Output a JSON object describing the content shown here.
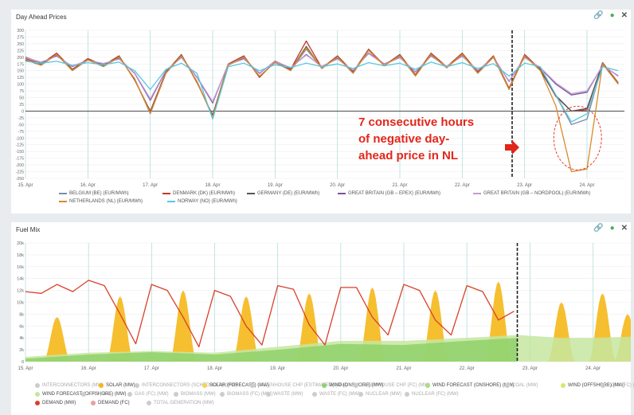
{
  "panels": {
    "prices": {
      "title": "Day Ahead Prices"
    },
    "fuel": {
      "title": "Fuel Mix"
    }
  },
  "icons": {
    "link": "link-icon",
    "database": "database-icon",
    "close": "close-icon"
  },
  "annotation": {
    "lines": [
      "7 consecutive hours",
      "of negative day-",
      "ahead price in NL"
    ],
    "color": "#e3261b"
  },
  "chart_data": [
    {
      "type": "line",
      "title": "Day Ahead Prices",
      "x_ticks": [
        "15. Apr",
        "16. Apr",
        "17. Apr",
        "18. Apr",
        "19. Apr",
        "20. Apr",
        "21. Apr",
        "22. Apr",
        "23. Apr",
        "24. Apr"
      ],
      "y_ticks": [
        300,
        275,
        250,
        225,
        200,
        175,
        150,
        125,
        100,
        75,
        50,
        25,
        0,
        -25,
        -50,
        -75,
        -100,
        -125,
        -150,
        -175,
        -200,
        -225,
        -250
      ],
      "ylim": [
        -250,
        300
      ],
      "x_range_days": [
        0,
        9.6
      ],
      "now_marker_day": 7.8,
      "grid": true,
      "legend_placement": "bottom",
      "series": [
        {
          "name": "BELGIUM (BE) (EUR/MWh)",
          "color": "#7a8fa6",
          "x": [
            0,
            0.25,
            0.5,
            0.75,
            1,
            1.25,
            1.5,
            1.75,
            2,
            2.25,
            2.5,
            2.75,
            3,
            3.25,
            3.5,
            3.75,
            4,
            4.25,
            4.5,
            4.75,
            5,
            5.25,
            5.5,
            5.75,
            6,
            6.25,
            6.5,
            6.75,
            7,
            7.25,
            7.5,
            7.75,
            8,
            8.25,
            8.5,
            8.75,
            9,
            9.25,
            9.5
          ],
          "values": [
            190,
            170,
            210,
            150,
            190,
            165,
            200,
            120,
            -10,
            140,
            205,
            110,
            -20,
            170,
            200,
            130,
            180,
            150,
            230,
            160,
            200,
            140,
            225,
            170,
            205,
            130,
            210,
            160,
            210,
            140,
            200,
            80,
            205,
            150,
            60,
            -50,
            -30,
            175,
            100
          ]
        },
        {
          "name": "DENMARK (DK) (EUR/MWh)",
          "color": "#c0392b",
          "x": [
            0,
            0.25,
            0.5,
            0.75,
            1,
            1.25,
            1.5,
            1.75,
            2,
            2.25,
            2.5,
            2.75,
            3,
            3.25,
            3.5,
            3.75,
            4,
            4.25,
            4.5,
            4.75,
            5,
            5.25,
            5.5,
            5.75,
            6,
            6.25,
            6.5,
            6.75,
            7,
            7.25,
            7.5,
            7.75,
            8,
            8.25,
            8.5,
            8.75,
            9,
            9.25,
            9.5
          ],
          "values": [
            195,
            175,
            215,
            155,
            195,
            170,
            205,
            115,
            0,
            145,
            210,
            105,
            -15,
            175,
            205,
            125,
            185,
            155,
            260,
            160,
            205,
            145,
            230,
            170,
            210,
            135,
            215,
            165,
            215,
            145,
            205,
            85,
            210,
            155,
            55,
            0,
            5,
            180,
            105
          ]
        },
        {
          "name": "GERMANY (DE) (EUR/MWh)",
          "color": "#555555",
          "x": [
            0,
            0.25,
            0.5,
            0.75,
            1,
            1.25,
            1.5,
            1.75,
            2,
            2.25,
            2.5,
            2.75,
            3,
            3.25,
            3.5,
            3.75,
            4,
            4.25,
            4.5,
            4.75,
            5,
            5.25,
            5.5,
            5.75,
            6,
            6.25,
            6.5,
            6.75,
            7,
            7.25,
            7.5,
            7.75,
            8,
            8.25,
            8.5,
            8.75,
            9,
            9.25,
            9.5
          ],
          "values": [
            190,
            172,
            212,
            152,
            192,
            168,
            202,
            118,
            -5,
            142,
            208,
            108,
            -18,
            172,
            202,
            128,
            182,
            152,
            240,
            158,
            202,
            142,
            228,
            168,
            208,
            132,
            212,
            162,
            212,
            142,
            202,
            82,
            207,
            152,
            58,
            0,
            10,
            177,
            102
          ]
        },
        {
          "name": "GREAT BRITAIN (GB – EPEX) (EUR/MWh)",
          "color": "#7b4fa0",
          "x": [
            0,
            0.25,
            0.5,
            0.75,
            1,
            1.25,
            1.5,
            1.75,
            2,
            2.25,
            2.5,
            2.75,
            3,
            3.25,
            3.5,
            3.75,
            4,
            4.25,
            4.5,
            4.75,
            5,
            5.25,
            5.5,
            5.75,
            6,
            6.25,
            6.5,
            6.75,
            7,
            7.25,
            7.5,
            7.75,
            8,
            8.25,
            8.5,
            8.75,
            9,
            9.25,
            9.5
          ],
          "values": [
            200,
            180,
            205,
            165,
            190,
            175,
            195,
            140,
            40,
            150,
            200,
            125,
            30,
            175,
            195,
            140,
            185,
            160,
            210,
            165,
            195,
            150,
            215,
            175,
            200,
            145,
            205,
            165,
            205,
            150,
            200,
            110,
            200,
            160,
            100,
            60,
            70,
            170,
            130
          ]
        },
        {
          "name": "GREAT BRITAIN (GB – NORDPOOL) (EUR/MWh)",
          "color": "#c39bd3",
          "x": [
            0,
            0.25,
            0.5,
            0.75,
            1,
            1.25,
            1.5,
            1.75,
            2,
            2.25,
            2.5,
            2.75,
            3,
            3.25,
            3.5,
            3.75,
            4,
            4.25,
            4.5,
            4.75,
            5,
            5.25,
            5.5,
            5.75,
            6,
            6.25,
            6.5,
            6.75,
            7,
            7.25,
            7.5,
            7.75,
            8,
            8.25,
            8.5,
            8.75,
            9,
            9.25,
            9.5
          ],
          "values": [
            198,
            182,
            203,
            167,
            188,
            177,
            193,
            142,
            45,
            152,
            198,
            127,
            35,
            173,
            193,
            142,
            183,
            162,
            208,
            167,
            193,
            152,
            213,
            173,
            198,
            147,
            203,
            167,
            203,
            152,
            198,
            112,
            198,
            162,
            105,
            65,
            75,
            168,
            132
          ]
        },
        {
          "name": "NETHERLANDS (NL) (EUR/MWh)",
          "color": "#d98a2b",
          "x": [
            0,
            0.25,
            0.5,
            0.75,
            1,
            1.25,
            1.5,
            1.75,
            2,
            2.25,
            2.5,
            2.75,
            3,
            3.25,
            3.5,
            3.75,
            4,
            4.25,
            4.5,
            4.75,
            5,
            5.25,
            5.5,
            5.75,
            6,
            6.25,
            6.5,
            6.75,
            7,
            7.25,
            7.5,
            7.75,
            8,
            8.25,
            8.5,
            8.75,
            9,
            9.25,
            9.5
          ],
          "values": [
            192,
            171,
            211,
            151,
            191,
            166,
            201,
            119,
            -8,
            141,
            206,
            109,
            -22,
            171,
            201,
            129,
            181,
            151,
            235,
            159,
            201,
            141,
            226,
            169,
            206,
            131,
            211,
            161,
            211,
            141,
            201,
            81,
            206,
            151,
            20,
            -225,
            -215,
            176,
            101
          ]
        },
        {
          "name": "NORWAY (NO) (EUR/MWh)",
          "color": "#56c8e0",
          "x": [
            0,
            0.25,
            0.5,
            0.75,
            1,
            1.25,
            1.5,
            1.75,
            2,
            2.25,
            2.5,
            2.75,
            3,
            3.25,
            3.5,
            3.75,
            4,
            4.25,
            4.5,
            4.75,
            5,
            5.25,
            5.5,
            5.75,
            6,
            6.25,
            6.5,
            6.75,
            7,
            7.25,
            7.5,
            7.75,
            8,
            8.25,
            8.5,
            8.75,
            9,
            9.25,
            9.5
          ],
          "values": [
            185,
            178,
            185,
            170,
            180,
            172,
            182,
            150,
            80,
            155,
            178,
            140,
            -30,
            165,
            178,
            150,
            172,
            162,
            178,
            165,
            175,
            158,
            180,
            168,
            178,
            155,
            182,
            165,
            180,
            158,
            176,
            130,
            178,
            165,
            60,
            -40,
            -10,
            165,
            150
          ]
        }
      ]
    },
    {
      "type": "area",
      "title": "Fuel Mix",
      "x_ticks": [
        "15. Apr",
        "16. Apr",
        "17. Apr",
        "18. Apr",
        "19. Apr",
        "20. Apr",
        "21. Apr",
        "22. Apr",
        "23. Apr",
        "24. Apr"
      ],
      "y_ticks": [
        "20k",
        "18k",
        "16k",
        "14k",
        "12k",
        "10k",
        "8k",
        "6k",
        "4k",
        "2k",
        "0"
      ],
      "ylim": [
        0,
        20000
      ],
      "x_range_days": [
        0,
        9.6
      ],
      "now_marker_day": 7.8,
      "grid": true,
      "legend_placement": "bottom",
      "series": [
        {
          "name": "SOLAR (MW)",
          "color": "#f5b819",
          "type": "area",
          "peaks_x": [
            0.5,
            1.5,
            2.5,
            3.5,
            4.5,
            5.5,
            6.5,
            7.5,
            8.5,
            9.15,
            9.55
          ],
          "peaks_y": [
            7500,
            11000,
            12000,
            11000,
            11500,
            12500,
            12000,
            13500,
            10000,
            11500,
            8000
          ]
        },
        {
          "name": "WIND FORECAST (OFFSHORE) (MW)",
          "color": "#c5e6a0",
          "type": "area",
          "x": [
            0,
            1,
            2,
            3,
            4,
            5,
            6,
            7,
            7.8,
            8.5,
            9,
            9.6
          ],
          "values": [
            800,
            1500,
            1800,
            1500,
            2500,
            3500,
            3500,
            4000,
            4500,
            4000,
            4000,
            4200
          ]
        },
        {
          "name": "WIND (ONSHORE) (MW)",
          "color": "#8fd16a",
          "type": "area",
          "x": [
            0,
            1,
            2,
            3,
            4,
            5,
            6,
            7,
            7.8
          ],
          "values": [
            500,
            1200,
            1600,
            1200,
            2000,
            3000,
            2800,
            3500,
            4000
          ]
        },
        {
          "name": "DEMAND (MW)",
          "color": "#d9402a",
          "type": "line",
          "x": [
            0,
            0.25,
            0.5,
            0.75,
            1,
            1.25,
            1.5,
            1.75,
            2,
            2.25,
            2.5,
            2.75,
            3,
            3.25,
            3.5,
            3.75,
            4,
            4.25,
            4.5,
            4.75,
            5,
            5.25,
            5.5,
            5.75,
            6,
            6.25,
            6.5,
            6.75,
            7,
            7.25,
            7.5,
            7.75
          ],
          "values": [
            11800,
            11500,
            13000,
            11800,
            13700,
            12800,
            8000,
            3000,
            13000,
            12000,
            7500,
            2500,
            12000,
            11000,
            6000,
            2800,
            12800,
            12200,
            6200,
            2800,
            12500,
            12500,
            7500,
            4500,
            13000,
            12000,
            7000,
            4500,
            12800,
            11800,
            7000,
            8500
          ]
        }
      ],
      "legend_entries": [
        {
          "name": "INTERCONNECTORS (MW)",
          "color": "#cccccc"
        },
        {
          "name": "SOLAR (MW)",
          "color": "#f5b819"
        },
        {
          "name": "INTERCONNECTORS (SCHEDULED) (MW)",
          "color": "#cccccc"
        },
        {
          "name": "SOLAR (FORECAST) (MW)",
          "color": "#f7d25c"
        },
        {
          "name": "GREENHOUSE CHP (ESTIMATED) (MW)",
          "color": "#cccccc"
        },
        {
          "name": "WIND (ONSHORE) (MW)",
          "color": "#8fd16a"
        },
        {
          "name": "GREENHOUSE CHP (FC) (MW)",
          "color": "#cccccc"
        },
        {
          "name": "WIND FORECAST (ONSHORE) (MW)",
          "color": "#a8dd85"
        },
        {
          "name": "COAL (MW)",
          "color": "#cccccc"
        },
        {
          "name": "WIND (OFFSHORE) (MW)",
          "color": "#d6e86a"
        },
        {
          "name": "COAL (FC) (MW)",
          "color": "#cccccc"
        },
        {
          "name": "WIND FORECAST (OFFSHORE) (MW)",
          "color": "#c5e6a0"
        },
        {
          "name": "GAS (MW)",
          "color": "#cccccc"
        },
        {
          "name": "GAS (FC) (MW)",
          "color": "#cccccc"
        },
        {
          "name": "BIOMASS (MW)",
          "color": "#cccccc"
        },
        {
          "name": "BIOMASS (FC) (MW)",
          "color": "#cccccc"
        },
        {
          "name": "WASTE (MW)",
          "color": "#cccccc"
        },
        {
          "name": "WASTE (FC) (MW)",
          "color": "#cccccc"
        },
        {
          "name": "NUCLEAR (MW)",
          "color": "#cccccc"
        },
        {
          "name": "NUCLEAR (FC) (MW)",
          "color": "#cccccc"
        },
        {
          "name": "DEMAND (MW)",
          "color": "#d9402a"
        },
        {
          "name": "DEMAND (FC)",
          "color": "#e8a0a0"
        },
        {
          "name": "TOTAL GENERATION (MW)",
          "color": "#cccccc"
        }
      ]
    }
  ]
}
